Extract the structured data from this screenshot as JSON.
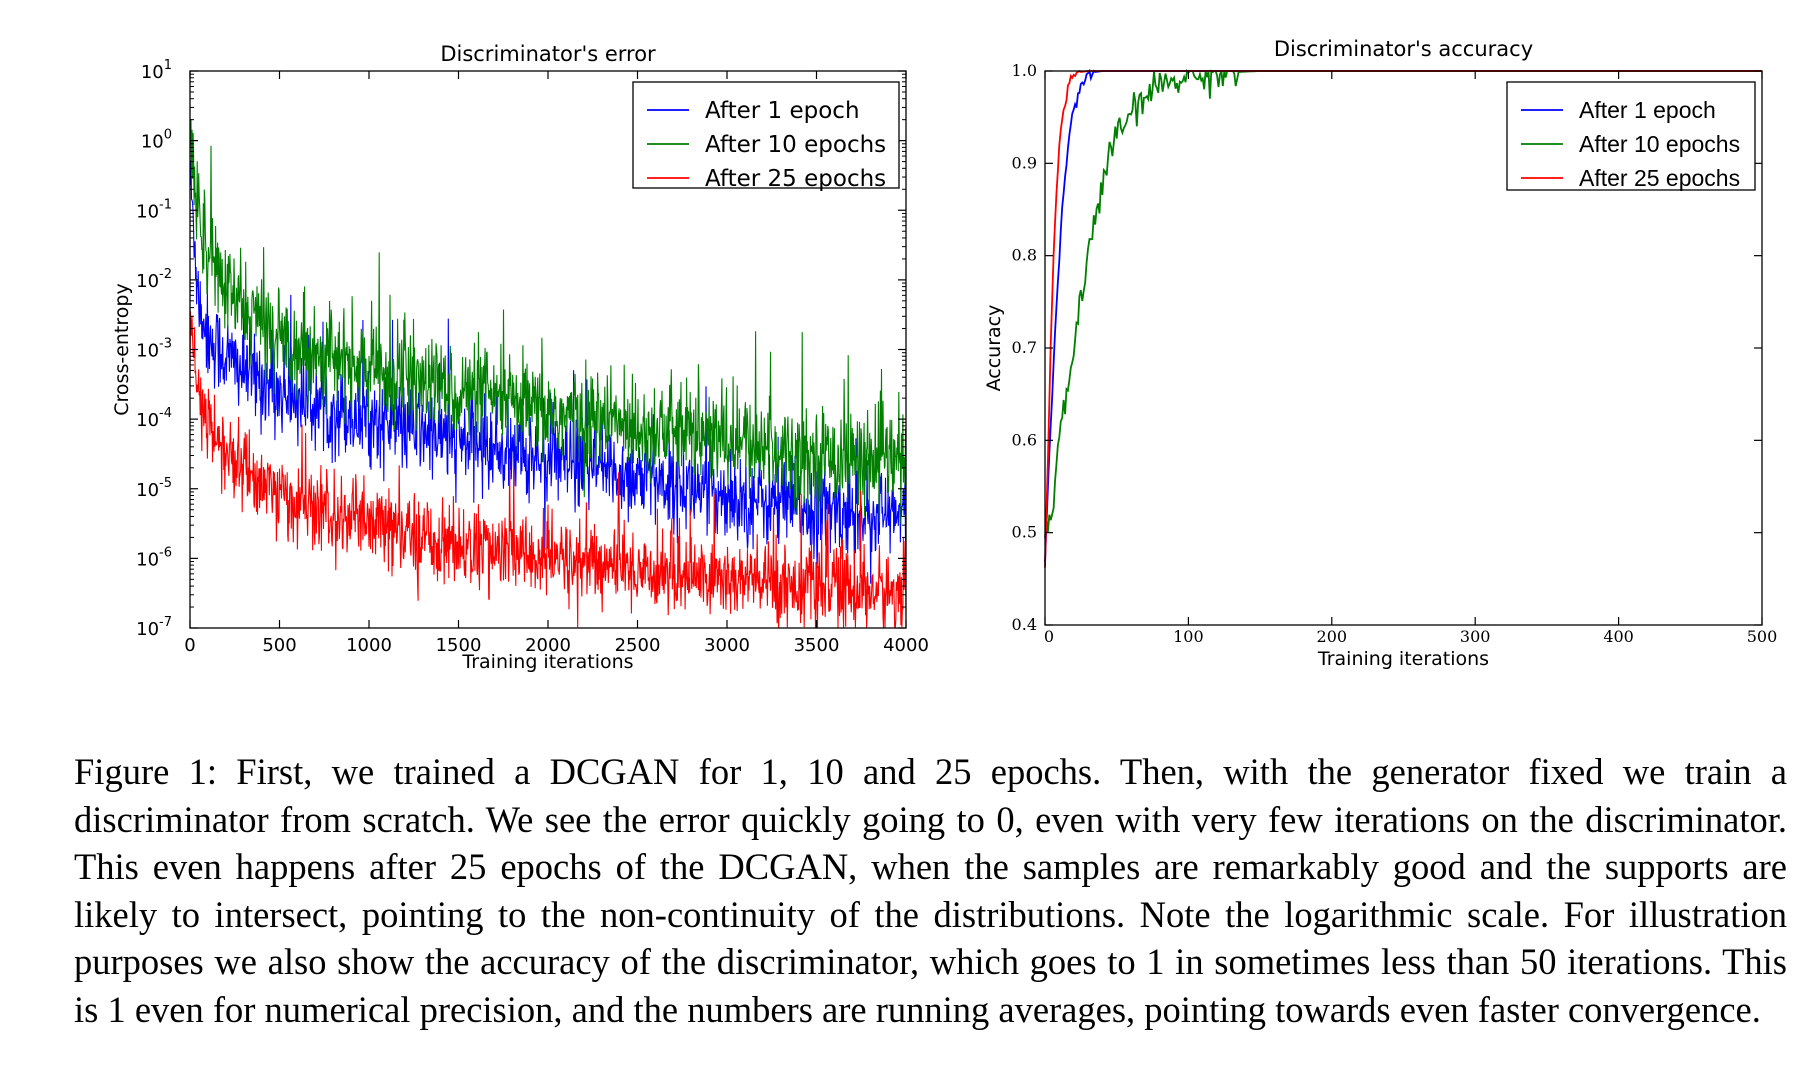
{
  "chart_data": [
    {
      "type": "line",
      "title": "Discriminator's error",
      "xlabel": "Training iterations",
      "ylabel": "Cross-entropy",
      "xlim": [
        0,
        4000
      ],
      "ylim": [
        1e-07,
        10
      ],
      "yscale": "log",
      "grid": false,
      "legend": "top-right",
      "x_ticks": [
        "0",
        "500",
        "1000",
        "1500",
        "2000",
        "2500",
        "3000",
        "3500",
        "4000"
      ],
      "y_tick_exponents": [
        "1",
        "0",
        "-1",
        "-2",
        "-3",
        "-4",
        "-5",
        "-6",
        "-7"
      ],
      "series": [
        {
          "name": "After 1 epoch",
          "color": "#0000ff",
          "x": [
            0,
            50,
            100,
            200,
            300,
            500,
            750,
            1000,
            1500,
            2000,
            2500,
            3000,
            3500,
            4000
          ],
          "y": [
            0.3,
            0.005,
            0.0015,
            0.0008,
            0.0005,
            0.00025,
            0.00015,
            0.0001,
            5e-05,
            2.5e-05,
            1.5e-05,
            8e-06,
            5e-06,
            4e-06
          ]
        },
        {
          "name": "After 10 epochs",
          "color": "#007f00",
          "x": [
            0,
            50,
            100,
            200,
            300,
            500,
            750,
            1000,
            1500,
            2000,
            2500,
            3000,
            3500,
            4000
          ],
          "y": [
            1.0,
            0.1,
            0.03,
            0.007,
            0.004,
            0.0015,
            0.0008,
            0.0005,
            0.00025,
            0.00012,
            8e-05,
            5e-05,
            3e-05,
            2.5e-05
          ]
        },
        {
          "name": "After 25 epochs",
          "color": "#ff0000",
          "x": [
            0,
            50,
            100,
            200,
            300,
            500,
            750,
            1000,
            1500,
            2000,
            2500,
            3000,
            3500,
            4000
          ],
          "y": [
            0.002,
            0.0002,
            8e-05,
            3e-05,
            2e-05,
            8e-06,
            4e-06,
            3e-06,
            1.5e-06,
            1e-06,
            7e-07,
            5e-07,
            4e-07,
            3e-07
          ]
        }
      ]
    },
    {
      "type": "line",
      "title": "Discriminator's accuracy",
      "xlabel": "Training iterations",
      "ylabel": "Accuracy",
      "xlim": [
        0,
        500
      ],
      "ylim": [
        0.4,
        1.0
      ],
      "grid": false,
      "legend": "top-right",
      "x_ticks": [
        "0",
        "100",
        "200",
        "300",
        "400",
        "500"
      ],
      "y_ticks": [
        "0.4",
        "0.5",
        "0.6",
        "0.7",
        "0.8",
        "0.9",
        "1.0"
      ],
      "series": [
        {
          "name": "After 1 epoch",
          "color": "#0000ff",
          "x": [
            0,
            2,
            5,
            8,
            10,
            12,
            15,
            18,
            20,
            25,
            30,
            35,
            40,
            500
          ],
          "y": [
            0.47,
            0.55,
            0.65,
            0.75,
            0.8,
            0.85,
            0.9,
            0.94,
            0.96,
            0.985,
            0.995,
            0.999,
            1.0,
            1.0
          ]
        },
        {
          "name": "After 10 epochs",
          "color": "#007f00",
          "x": [
            0,
            5,
            10,
            15,
            20,
            25,
            30,
            40,
            50,
            60,
            70,
            80,
            100,
            120,
            150,
            500
          ],
          "y": [
            0.5,
            0.52,
            0.6,
            0.65,
            0.7,
            0.75,
            0.8,
            0.88,
            0.93,
            0.955,
            0.97,
            0.985,
            0.995,
            0.998,
            1.0,
            1.0
          ]
        },
        {
          "name": "After 25 epochs",
          "color": "#ff0000",
          "x": [
            0,
            2,
            4,
            6,
            8,
            10,
            13,
            16,
            20,
            25,
            30,
            500
          ],
          "y": [
            0.46,
            0.58,
            0.7,
            0.8,
            0.87,
            0.92,
            0.96,
            0.98,
            0.995,
            0.999,
            1.0,
            1.0
          ]
        }
      ]
    }
  ],
  "caption": "Figure 1: First, we trained a DCGAN for 1, 10 and 25 epochs. Then, with the generator fixed we train a discriminator from scratch. We see the error quickly going to 0, even with very few iterations on the discriminator. This even happens after 25 epochs of the DCGAN, when the samples are remarkably good and the supports are likely to intersect, pointing to the non-continuity of the distributions. Note the logarithmic scale. For illustration purposes we also show the accuracy of the discriminator, which goes to 1 in sometimes less than 50 iterations. This is 1 even for numerical precision, and the numbers are running averages, pointing towards even faster convergence."
}
